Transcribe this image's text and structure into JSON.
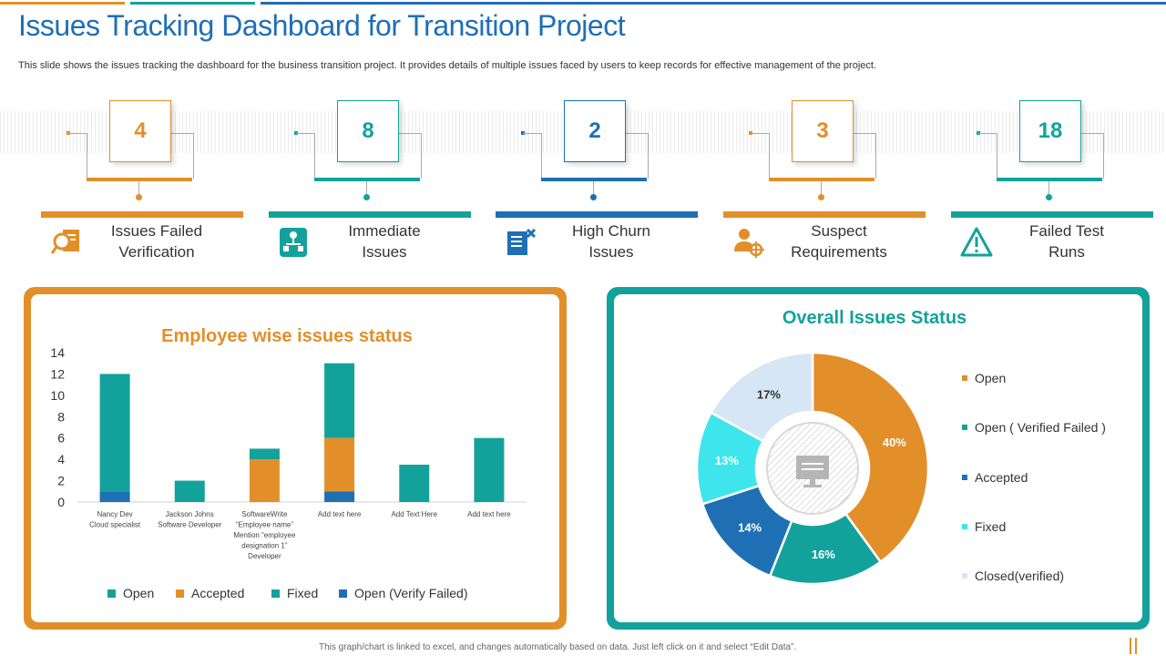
{
  "header": {
    "title": "Issues Tracking Dashboard for Transition Project",
    "subtitle": "This slide shows the issues tracking the dashboard for the business transition project. It provides details of multiple issues faced by users to keep records for effective management of the project."
  },
  "kpis": [
    {
      "value": "4",
      "label_line1": "Issues Failed",
      "label_line2": "Verification",
      "icon": "magnifier-document-icon",
      "color": "#e28f2a"
    },
    {
      "value": "8",
      "label_line1": "Immediate",
      "label_line2": "Issues",
      "icon": "network-tree-icon",
      "color": "#13a29b"
    },
    {
      "value": "2",
      "label_line1": "High Churn",
      "label_line2": "Issues",
      "icon": "document-cross-icon",
      "color": "#1f6fb4"
    },
    {
      "value": "3",
      "label_line1": "Suspect",
      "label_line2": "Requirements",
      "icon": "user-target-icon",
      "color": "#e28f2a"
    },
    {
      "value": "18",
      "label_line1": "Failed Test",
      "label_line2": "Runs",
      "icon": "warning-triangle-icon",
      "color": "#13a29b"
    }
  ],
  "colors": {
    "orange": "#e28f2a",
    "teal": "#13a29b",
    "blue": "#1f6fb4",
    "light_teal": "#3ee6ec",
    "pale_blue": "#d6e6f5"
  },
  "chart_data": [
    {
      "type": "bar",
      "stacked": true,
      "title": "Employee wise issues status",
      "categories": [
        [
          "Nancy Dev",
          "Cloud specialist"
        ],
        [
          "Jackson Johns",
          "Software Developer"
        ],
        [
          "SoftwareWrite",
          "“Employee  name”",
          "Mention  “employee",
          "designation 1”",
          "Developer"
        ],
        [
          "Add text here"
        ],
        [
          "Add Text Here"
        ],
        [
          "Add text here"
        ]
      ],
      "series": [
        {
          "name": "Open (Verify Failed)",
          "color": "#1f6fb4",
          "values": [
            1,
            0,
            0,
            1,
            0,
            0
          ]
        },
        {
          "name": "Accepted",
          "color": "#e28f2a",
          "values": [
            0,
            0,
            4,
            5,
            0,
            0
          ]
        },
        {
          "name": "Open",
          "color": "#13a29b",
          "values": [
            11,
            2,
            0,
            7,
            3.5,
            6
          ]
        },
        {
          "name": "Fixed",
          "color": "#13a29b",
          "values": [
            0,
            0,
            1,
            0,
            0,
            0
          ]
        }
      ],
      "legend": [
        "Open",
        "Accepted",
        "Fixed",
        "Open (Verify Failed)"
      ],
      "legend_colors": [
        "#13a29b",
        "#e28f2a",
        "#13a29b",
        "#1f6fb4"
      ],
      "ylim": [
        0,
        14
      ],
      "yticks": [
        0,
        2,
        4,
        6,
        8,
        10,
        12,
        14
      ],
      "grid": false
    },
    {
      "type": "pie",
      "donut": true,
      "title": "Overall Issues Status",
      "slices": [
        {
          "label": "Open",
          "value": 40,
          "text": "40%",
          "color": "#e28f2a"
        },
        {
          "label": "Open ( Verified Failed )",
          "value": 16,
          "text": "16%",
          "color": "#13a29b"
        },
        {
          "label": "Accepted",
          "value": 14,
          "text": "14%",
          "color": "#1f6fb4"
        },
        {
          "label": "Fixed",
          "value": 13,
          "text": "13%",
          "color": "#3ee6ec"
        },
        {
          "label": "Closed(verified)",
          "value": 17,
          "text": "17%",
          "color": "#d6e6f5"
        }
      ],
      "legend_placement": "right"
    }
  ],
  "footer": {
    "note": "This graph/chart is linked to excel, and changes automatically based on data. Just left click on it and select “Edit Data”."
  }
}
